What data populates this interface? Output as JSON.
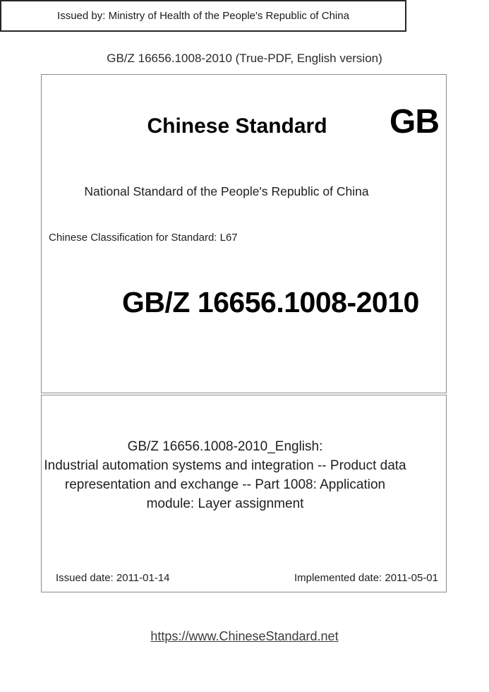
{
  "header": {
    "title": "GB/Z 16656.1008-2010 (True-PDF, English version)"
  },
  "cover": {
    "brand": "Chinese Standard",
    "logo": "GB",
    "national": "National Standard of the People's Republic of China",
    "classification": "Chinese Classification for Standard: L67",
    "standard_no": "GB/Z 16656.1008-2010"
  },
  "detail": {
    "title_lines": [
      "GB/Z 16656.1008-2010_English:",
      "Industrial automation systems and integration -- Product data",
      "representation and exchange -- Part 1008: Application",
      "module: Layer assignment"
    ],
    "issued_date": "Issued date: 2011-01-14",
    "implemented_date": "Implemented date: 2011-05-01"
  },
  "issuer": {
    "text": "Issued by: Ministry of Health of the People's Republic of China"
  },
  "footer": {
    "link": "https://www.ChineseStandard.net"
  },
  "colors": {
    "box_border_gray": "#8a8a8a",
    "issuer_border_dark": "#262626",
    "text_main": "#1f1f1f",
    "background": "#ffffff"
  }
}
